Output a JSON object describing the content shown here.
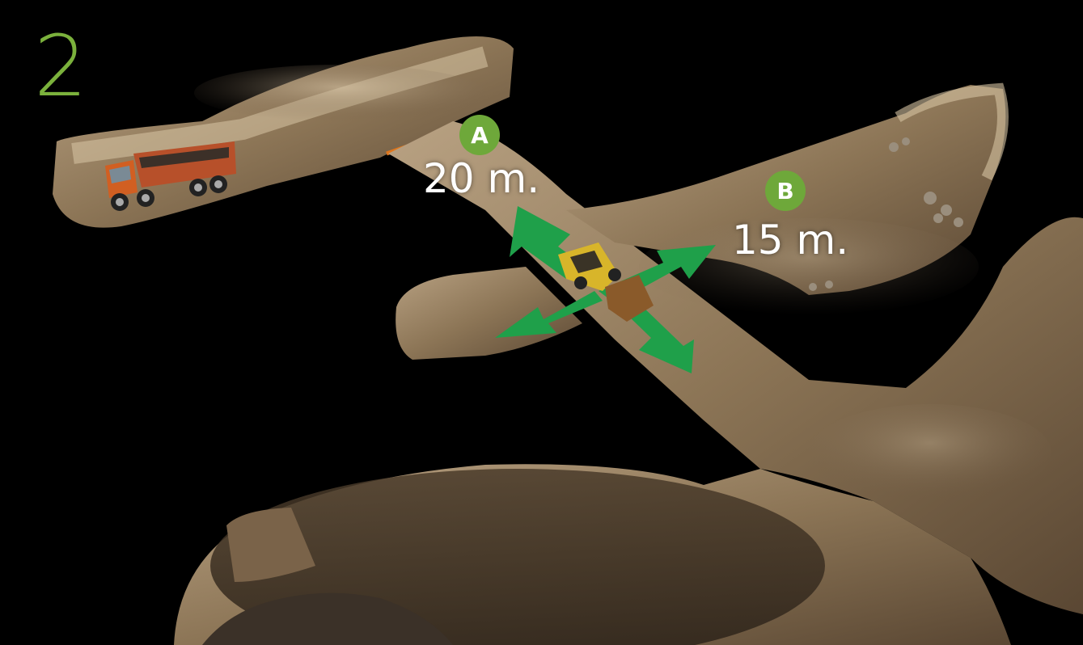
{
  "step": {
    "number": "2",
    "color": "#7bb13c"
  },
  "markers": [
    {
      "letter": "A",
      "distance": "20 m."
    },
    {
      "letter": "B",
      "distance": "15 m."
    }
  ],
  "colors": {
    "marker": "#6ea83a",
    "arrow": "#1fa04a",
    "tunnel": "#8c7556",
    "background": "#000000",
    "accent_strip": "#e0761c"
  },
  "objects": {
    "truck": "dump-truck",
    "loader": "underground-loader",
    "arrows": "movement-directions"
  }
}
